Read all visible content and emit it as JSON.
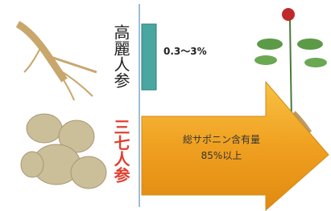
{
  "labels": {
    "korean_ginseng": "高麗人参",
    "sanchi_ginseng": "三七人参"
  },
  "korean_ginseng_value": "0.3〜3%",
  "arrow_text": {
    "line1": "総サポニン含有量",
    "line2": "85%以上"
  }
}
